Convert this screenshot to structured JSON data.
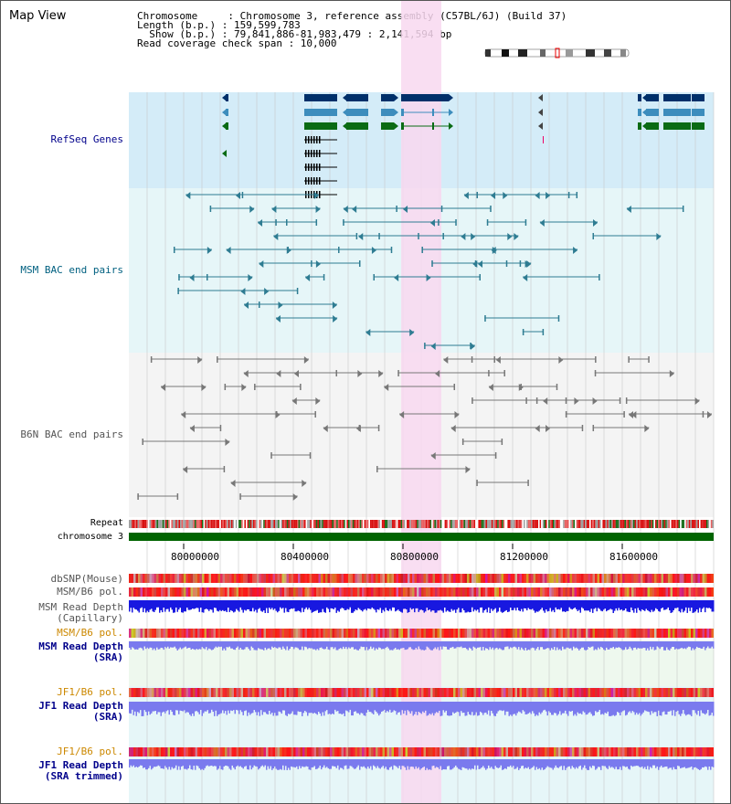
{
  "page": {
    "title": "Map View"
  },
  "info": {
    "lines": [
      "Chromosome     : Chromosome 3, reference assembly (C57BL/6J) (Build 37)",
      "Length (b.p.) : 159,599,783",
      "  Show (b.p.) : 79,841,886-81,983,479 : 2,141,594 bp",
      "Read coverage check span : 10,000"
    ]
  },
  "tracks": {
    "refseq": "RefSeq Genes",
    "msm_bac": "MSM BAC end pairs",
    "b6n_bac": "B6N BAC end pairs",
    "repeat": "Repeat",
    "chromosome": "chromosome 3",
    "dbsnp": "dbSNP(Mouse)",
    "msm_b6_pol": "MSM/B6 pol.",
    "msm_depth_cap": "MSM Read Depth\n(Capillary)",
    "msm_b6_pol2": "MSM/B6 pol.",
    "msm_depth_sra": "MSM Read Depth\n(SRA)",
    "jf1_b6_pol": "JF1/B6 pol.",
    "jf1_depth_sra": "JF1 Read Depth\n(SRA)",
    "jf1_b6_pol2": "JF1/B6 pol.",
    "jf1_depth_trim": "JF1 Read Depth\n(SRA trimmed)"
  },
  "axis": {
    "ticks": [
      "80000000",
      "80400000",
      "80800000",
      "81200000",
      "81600000"
    ]
  },
  "colors": {
    "label_blue": "#00008b",
    "label_teal": "#006080",
    "label_gray": "#555555",
    "label_orange": "#cc8800",
    "gene_dark": "#00306a",
    "gene_mid": "#3d8dbd",
    "gene_green": "#0a6b14",
    "highlight": "#f8d8f0",
    "bac_msm": "#2e7c92",
    "bac_b6n": "#777777",
    "chrom": "#006400",
    "depth_dark": "#1818e0",
    "depth_light": "#7a7aee"
  }
}
